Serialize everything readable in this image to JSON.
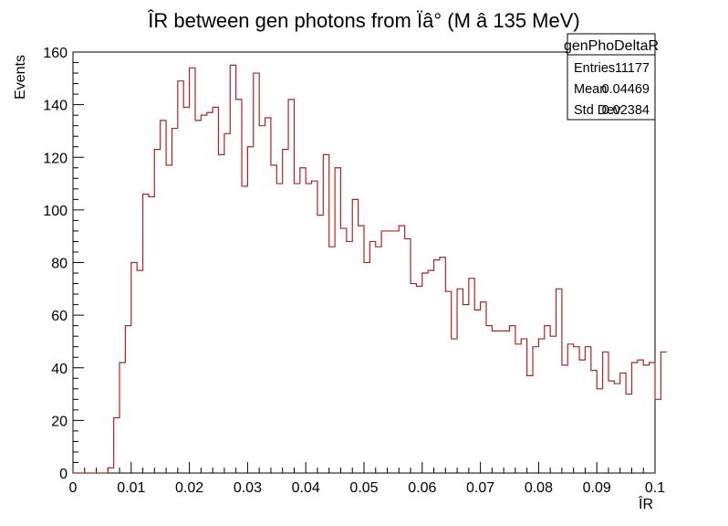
{
  "chart_data": {
    "type": "histogram",
    "title": "ÎR between gen photons from Ïâ° (M â 135 MeV)",
    "xlabel": "ÎR",
    "ylabel": "Events",
    "xlim": [
      0,
      0.1
    ],
    "ylim": [
      0,
      160
    ],
    "bin_width": 0.001,
    "x_ticks": [
      "0",
      "0.01",
      "0.02",
      "0.03",
      "0.04",
      "0.05",
      "0.06",
      "0.07",
      "0.08",
      "0.09",
      "0.1"
    ],
    "y_ticks": [
      "0",
      "20",
      "40",
      "60",
      "80",
      "100",
      "120",
      "140",
      "160"
    ],
    "line_color": "#b22222",
    "series": [
      {
        "values": [
          0,
          0,
          0,
          0,
          0,
          0,
          2,
          21,
          42,
          56,
          80,
          77,
          106,
          105,
          123,
          134,
          117,
          131,
          149,
          139,
          154,
          134,
          136,
          137,
          139,
          121,
          129,
          155,
          142,
          109,
          124,
          152,
          132,
          135,
          117,
          110,
          123,
          142,
          110,
          116,
          110,
          111,
          98,
          121,
          86,
          116,
          93,
          88,
          104,
          94,
          80,
          88,
          86,
          92,
          92,
          92,
          94,
          89,
          72,
          71,
          76,
          77,
          81,
          82,
          69,
          51,
          70,
          64,
          74,
          62,
          65,
          56,
          54,
          54,
          54,
          56,
          49,
          51,
          37,
          48,
          51,
          56,
          52,
          70,
          41,
          49,
          48,
          43,
          48,
          39,
          32,
          46,
          35,
          34,
          38,
          30,
          42,
          43,
          41,
          42,
          28,
          46
        ],
        "start": 0.0
      }
    ],
    "stats_box": {
      "title": "genPhoDeltaR",
      "rows": [
        {
          "label": "Entries",
          "value": "11177"
        },
        {
          "label": "Mean",
          "value": "0.04469"
        },
        {
          "label": "Std Dev",
          "value": "0.02384"
        }
      ]
    }
  }
}
